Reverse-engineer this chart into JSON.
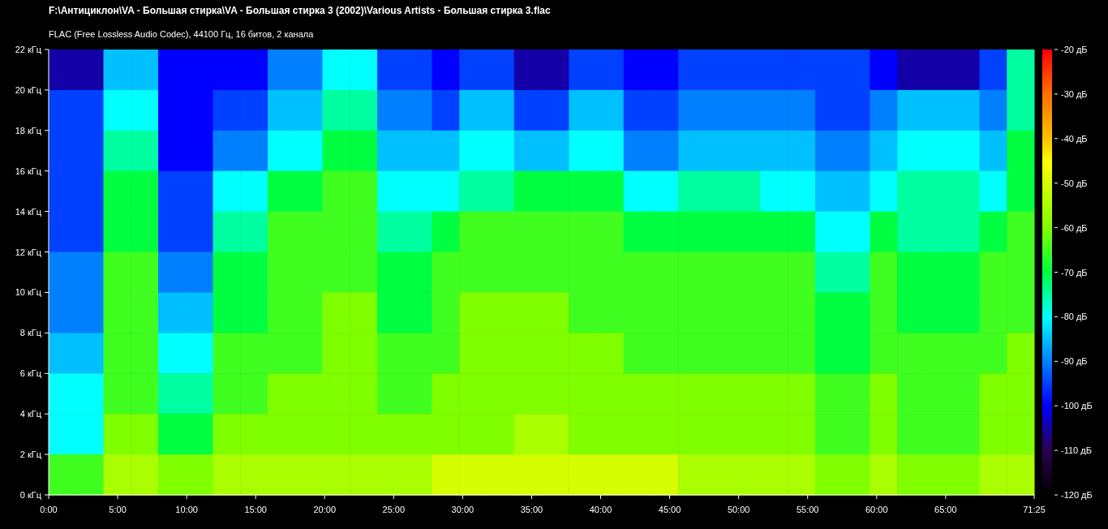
{
  "chart_data": {
    "type": "heatmap",
    "title": "F:\\Антициклон\\VA - Большая стирка\\VA - Большая стирка 3 (2002)\\Various Artists - Большая стирка 3.flac",
    "subtitle": "FLAC (Free Lossless Audio Codec), 44100 Гц, 16 битов, 2 канала",
    "xlim": [
      0,
      71.4167
    ],
    "xticks": [
      {
        "value": 0,
        "label": "0:00"
      },
      {
        "value": 5,
        "label": "5:00"
      },
      {
        "value": 10,
        "label": "10:00"
      },
      {
        "value": 15,
        "label": "15:00"
      },
      {
        "value": 20,
        "label": "20:00"
      },
      {
        "value": 25,
        "label": "25:00"
      },
      {
        "value": 30,
        "label": "30:00"
      },
      {
        "value": 35,
        "label": "35:00"
      },
      {
        "value": 40,
        "label": "40:00"
      },
      {
        "value": 45,
        "label": "45:00"
      },
      {
        "value": 50,
        "label": "50:00"
      },
      {
        "value": 55,
        "label": "55:00"
      },
      {
        "value": 60,
        "label": "60:00"
      },
      {
        "value": 65,
        "label": "65:00"
      },
      {
        "value": 71.4167,
        "label": "71:25"
      }
    ],
    "ylim": [
      0,
      22
    ],
    "yticks": [
      {
        "value": 0,
        "label": "0 кГц"
      },
      {
        "value": 2,
        "label": "2 кГц"
      },
      {
        "value": 4,
        "label": "4 кГц"
      },
      {
        "value": 6,
        "label": "6 кГц"
      },
      {
        "value": 8,
        "label": "8 кГц"
      },
      {
        "value": 10,
        "label": "10 кГц"
      },
      {
        "value": 12,
        "label": "12 кГц"
      },
      {
        "value": 14,
        "label": "14 кГц"
      },
      {
        "value": 16,
        "label": "16 кГц"
      },
      {
        "value": 18,
        "label": "18 кГц"
      },
      {
        "value": 20,
        "label": "20 кГц"
      },
      {
        "value": 22,
        "label": "22 кГц"
      }
    ],
    "clim": [
      -120,
      -20
    ],
    "cticks": [
      {
        "value": -120,
        "label": "-120 дБ"
      },
      {
        "value": -110,
        "label": "-110 дБ"
      },
      {
        "value": -100,
        "label": "-100 дБ"
      },
      {
        "value": -90,
        "label": "-90 дБ"
      },
      {
        "value": -80,
        "label": "-80 дБ"
      },
      {
        "value": -70,
        "label": "-70 дБ"
      },
      {
        "value": -60,
        "label": "-60 дБ"
      },
      {
        "value": -50,
        "label": "-50 дБ"
      },
      {
        "value": -40,
        "label": "-40 дБ"
      },
      {
        "value": -30,
        "label": "-30 дБ"
      },
      {
        "value": -20,
        "label": "-20 дБ"
      }
    ],
    "cells": [
      [
        -105,
        -105,
        -85,
        -85,
        -100,
        -100,
        -100,
        -100,
        -90,
        -90,
        -80,
        -80,
        -95,
        -95,
        -100,
        -95,
        -95,
        -105,
        -105,
        -95,
        -95,
        -100,
        -100,
        -95,
        -95,
        -95,
        -95,
        -95,
        -95,
        -95,
        -100,
        -105,
        -105,
        -105,
        -95,
        -75
      ],
      [
        -95,
        -95,
        -80,
        -80,
        -100,
        -100,
        -95,
        -95,
        -85,
        -85,
        -75,
        -75,
        -90,
        -90,
        -95,
        -85,
        -85,
        -95,
        -95,
        -85,
        -85,
        -95,
        -95,
        -90,
        -90,
        -90,
        -90,
        -90,
        -95,
        -95,
        -90,
        -85,
        -85,
        -85,
        -90,
        -75
      ],
      [
        -95,
        -95,
        -75,
        -75,
        -100,
        -100,
        -90,
        -90,
        -80,
        -80,
        -70,
        -70,
        -85,
        -85,
        -85,
        -80,
        -80,
        -85,
        -85,
        -80,
        -80,
        -90,
        -90,
        -85,
        -85,
        -85,
        -85,
        -85,
        -90,
        -90,
        -85,
        -80,
        -80,
        -80,
        -85,
        -70
      ],
      [
        -95,
        -95,
        -70,
        -70,
        -95,
        -95,
        -80,
        -80,
        -70,
        -70,
        -65,
        -65,
        -80,
        -80,
        -80,
        -75,
        -75,
        -70,
        -70,
        -70,
        -70,
        -80,
        -80,
        -75,
        -75,
        -75,
        -80,
        -80,
        -85,
        -85,
        -80,
        -75,
        -75,
        -75,
        -80,
        -70
      ],
      [
        -95,
        -95,
        -70,
        -70,
        -95,
        -95,
        -75,
        -75,
        -65,
        -65,
        -65,
        -65,
        -75,
        -75,
        -70,
        -65,
        -65,
        -65,
        -65,
        -65,
        -65,
        -70,
        -70,
        -70,
        -70,
        -70,
        -70,
        -70,
        -80,
        -80,
        -70,
        -75,
        -75,
        -75,
        -70,
        -65
      ],
      [
        -90,
        -90,
        -65,
        -65,
        -90,
        -90,
        -70,
        -70,
        -65,
        -65,
        -65,
        -65,
        -70,
        -70,
        -65,
        -65,
        -65,
        -65,
        -65,
        -65,
        -65,
        -65,
        -65,
        -65,
        -65,
        -65,
        -65,
        -65,
        -75,
        -75,
        -65,
        -70,
        -70,
        -70,
        -65,
        -65
      ],
      [
        -90,
        -90,
        -65,
        -65,
        -85,
        -85,
        -70,
        -70,
        -65,
        -65,
        -60,
        -60,
        -70,
        -70,
        -65,
        -60,
        -60,
        -60,
        -60,
        -65,
        -65,
        -65,
        -65,
        -65,
        -65,
        -65,
        -65,
        -65,
        -70,
        -70,
        -65,
        -70,
        -70,
        -70,
        -65,
        -65
      ],
      [
        -85,
        -85,
        -65,
        -65,
        -80,
        -80,
        -65,
        -65,
        -65,
        -65,
        -60,
        -60,
        -65,
        -65,
        -65,
        -60,
        -60,
        -60,
        -60,
        -60,
        -60,
        -65,
        -65,
        -65,
        -65,
        -65,
        -65,
        -65,
        -70,
        -70,
        -65,
        -65,
        -65,
        -65,
        -65,
        -60
      ],
      [
        -80,
        -80,
        -65,
        -65,
        -75,
        -75,
        -65,
        -65,
        -60,
        -60,
        -60,
        -60,
        -65,
        -65,
        -60,
        -60,
        -60,
        -60,
        -60,
        -60,
        -60,
        -60,
        -60,
        -60,
        -60,
        -60,
        -60,
        -60,
        -65,
        -65,
        -60,
        -65,
        -65,
        -65,
        -60,
        -60
      ],
      [
        -80,
        -80,
        -60,
        -60,
        -70,
        -70,
        -60,
        -60,
        -60,
        -60,
        -60,
        -60,
        -60,
        -60,
        -60,
        -60,
        -60,
        -55,
        -55,
        -60,
        -60,
        -60,
        -60,
        -60,
        -60,
        -60,
        -60,
        -60,
        -65,
        -65,
        -60,
        -65,
        -65,
        -65,
        -60,
        -60
      ],
      [
        -65,
        -65,
        -55,
        -55,
        -60,
        -60,
        -55,
        -55,
        -55,
        -55,
        -55,
        -55,
        -55,
        -55,
        -50,
        -50,
        -50,
        -50,
        -50,
        -50,
        -50,
        -50,
        -50,
        -55,
        -55,
        -55,
        -55,
        -55,
        -60,
        -60,
        -55,
        -60,
        -60,
        -60,
        -55,
        -55
      ]
    ]
  }
}
